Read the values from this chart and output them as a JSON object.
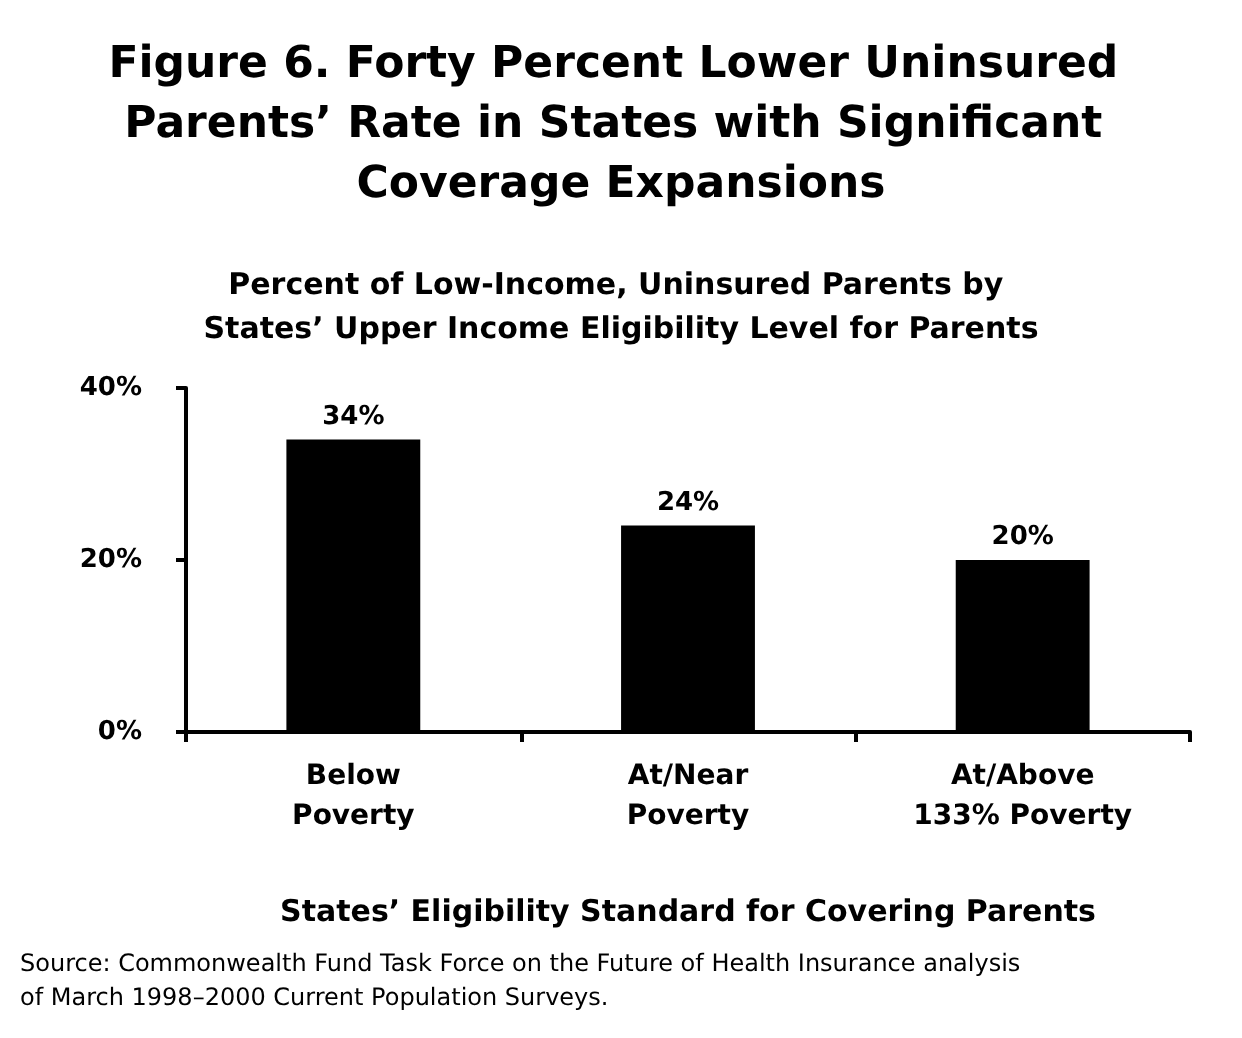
{
  "chart_data": {
    "type": "bar",
    "title": "Figure 6. Forty Percent Lower Uninsured Parents’ Rate in States with Significant Coverage Expansions",
    "subtitle": "Percent of Low-Income, Uninsured Parents by States’ Upper Income Eligibility Level for Parents",
    "xlabel": "States’ Eligibility Standard for Covering Parents",
    "categories": [
      "Below\nPoverty",
      "At/Near\nPoverty",
      "At/Above\n133% Poverty"
    ],
    "values": [
      34,
      24,
      20
    ],
    "value_labels": [
      "34%",
      "24%",
      "20%"
    ],
    "color": "#000000",
    "ylim": [
      0,
      40
    ],
    "yticks": [
      {
        "value": 0,
        "label": "0%"
      },
      {
        "value": 20,
        "label": "20%"
      },
      {
        "value": 40,
        "label": "40%"
      }
    ],
    "grid": false,
    "annotations": [
      "Source: Commonwealth Fund Task Force on the Future of Health Insurance analysis of March 1998–2000 Current Population Surveys."
    ]
  }
}
